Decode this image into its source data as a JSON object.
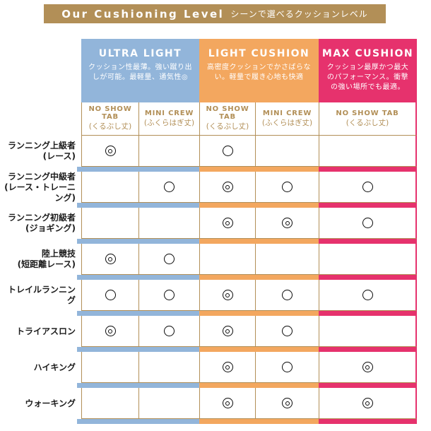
{
  "chart_data": {
    "type": "table",
    "title": "Our Cushioning Level",
    "subtitle_ja": "シーンで選べるクッションレベル",
    "colors": {
      "tan": "#b28f57",
      "blue": "#92b5da",
      "orange": "#f3a75f",
      "pink": "#e6326d"
    },
    "groups": [
      {
        "label": "ULTRA LIGHT",
        "desc": "クッション性最薄。強い蹴り出しが可能。最軽量、通気性◎"
      },
      {
        "label": "LIGHT CUSHION",
        "desc": "高密度クッションでかさばらない。軽量で履き心地も快適"
      },
      {
        "label": "MAX CUSHION",
        "desc": "クッション最厚かつ最大のパフォーマンス。衝撃の強い場所でも最適。"
      }
    ],
    "sub_columns": [
      {
        "label": "NO SHOW TAB",
        "length": "(くるぶし丈)"
      },
      {
        "label": "MINI CREW",
        "length": "(ふくらはぎ丈)"
      },
      {
        "label": "NO SHOW TAB",
        "length": "(くるぶし丈)"
      },
      {
        "label": "MINI CREW",
        "length": "(ふくらはぎ丈)"
      },
      {
        "label": "NO SHOW TAB",
        "length": "(くるぶし丈)"
      }
    ],
    "marks": {
      "double": "◎",
      "single": "○"
    },
    "rows": [
      {
        "label": "ランニング上級者",
        "note": "(レース)",
        "cells": [
          "◎",
          "",
          "○",
          "",
          ""
        ]
      },
      {
        "label": "ランニング中級者",
        "note": "(レース・トレーニング)",
        "cells": [
          "",
          "○",
          "◎",
          "○",
          "○"
        ]
      },
      {
        "label": "ランニング初級者",
        "note": "(ジョギング)",
        "cells": [
          "",
          "",
          "◎",
          "◎",
          "○"
        ]
      },
      {
        "label": "陸上競技",
        "note": "(短距離レース)",
        "cells": [
          "◎",
          "○",
          "",
          "",
          ""
        ]
      },
      {
        "label": "トレイルランニング",
        "note": "",
        "cells": [
          "○",
          "○",
          "◎",
          "○",
          "○"
        ]
      },
      {
        "label": "トライアスロン",
        "note": "",
        "cells": [
          "◎",
          "○",
          "◎",
          "○",
          ""
        ]
      },
      {
        "label": "ハイキング",
        "note": "",
        "cells": [
          "",
          "",
          "◎",
          "○",
          "◎"
        ]
      },
      {
        "label": "ウォーキング",
        "note": "",
        "cells": [
          "",
          "",
          "◎",
          "◎",
          "◎"
        ]
      }
    ]
  }
}
